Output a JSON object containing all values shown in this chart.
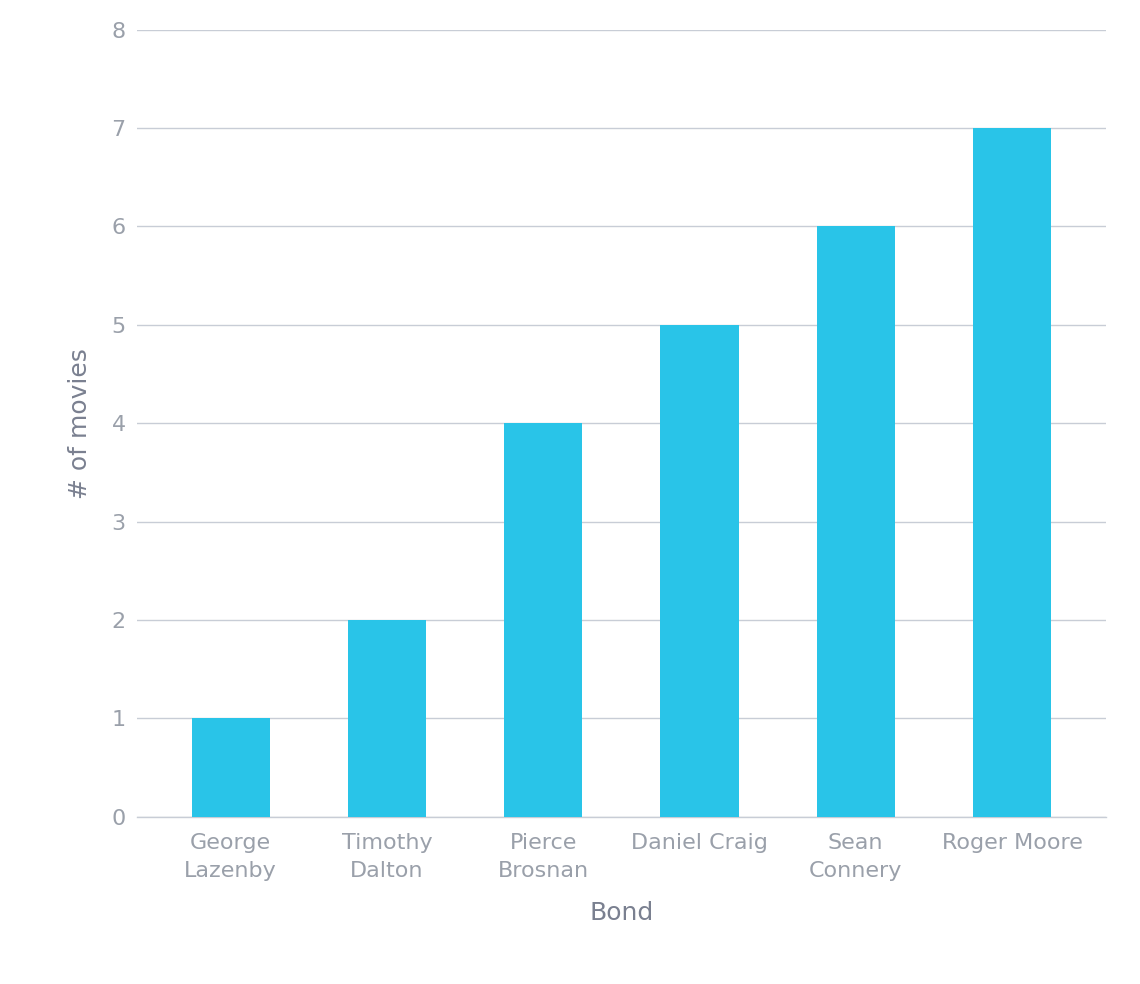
{
  "categories": [
    "George\nLazenby",
    "Timothy\nDalton",
    "Pierce\nBrosnan",
    "Daniel Craig",
    "Sean\nConnery",
    "Roger Moore"
  ],
  "values": [
    1,
    2,
    4,
    5,
    6,
    7
  ],
  "bar_color": "#29C4E8",
  "xlabel": "Bond",
  "ylabel": "# of movies",
  "ylim": [
    0,
    8
  ],
  "yticks": [
    0,
    1,
    2,
    3,
    4,
    5,
    6,
    7,
    8
  ],
  "background_color": "#ffffff",
  "grid_color": "#c8cdd6",
  "tick_color": "#9aa0aa",
  "label_color": "#7a8090",
  "xlabel_fontsize": 18,
  "ylabel_fontsize": 18,
  "tick_fontsize": 16,
  "bar_width": 0.5
}
